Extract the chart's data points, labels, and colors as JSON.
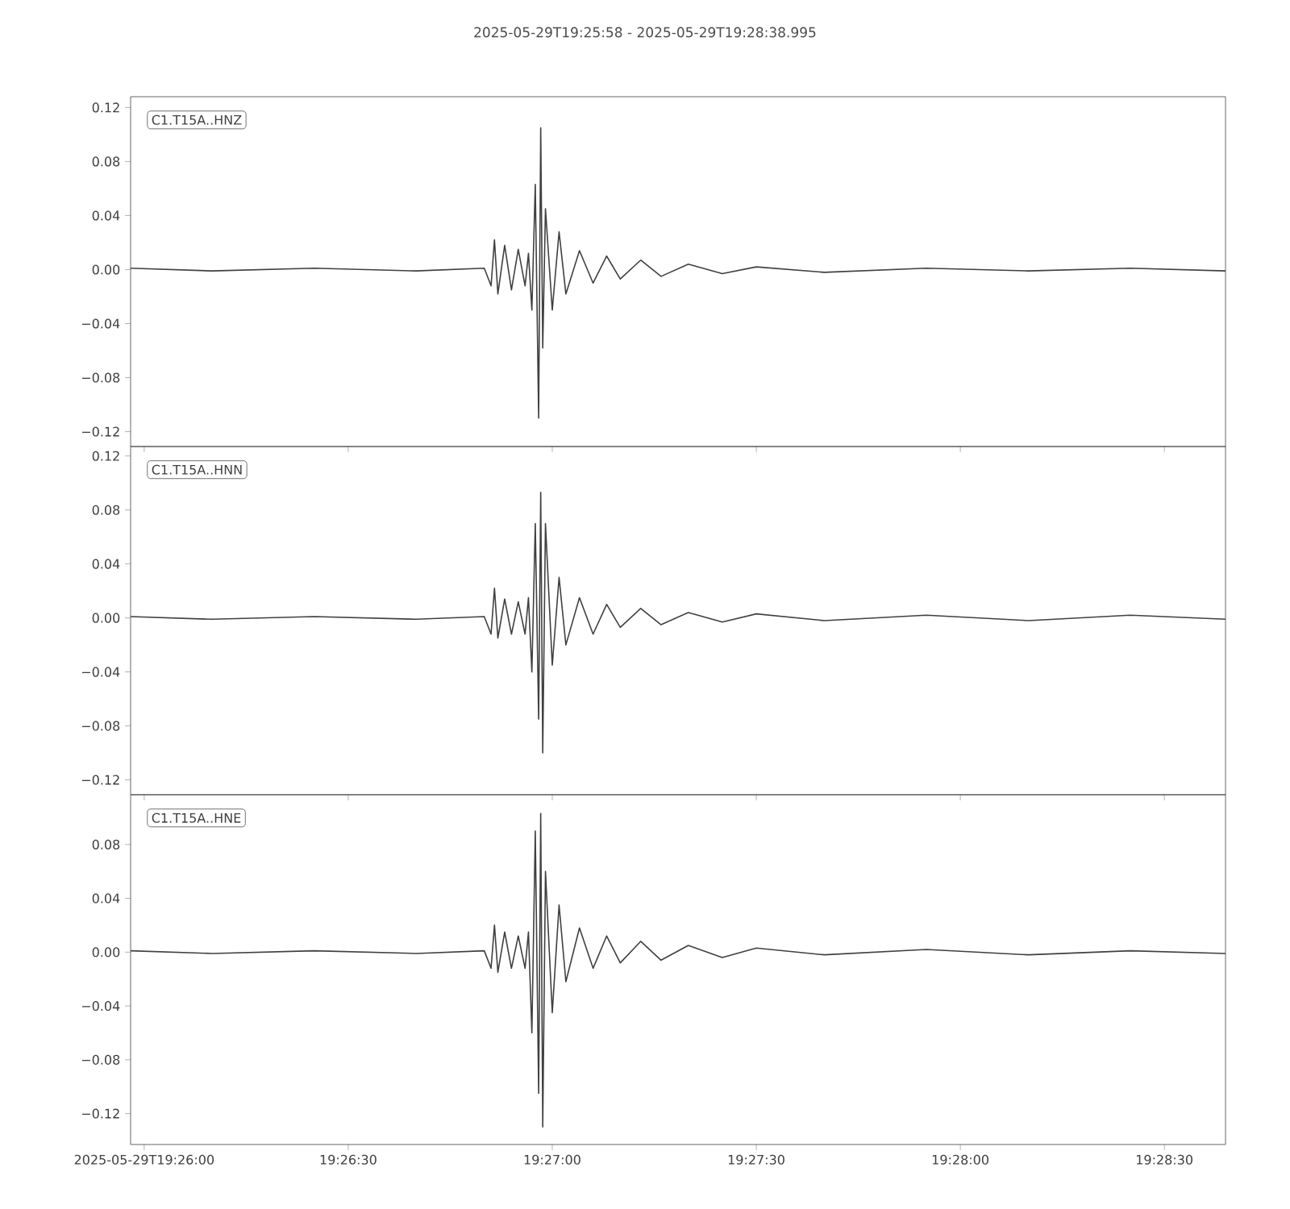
{
  "chart_data": [
    {
      "type": "line",
      "title": "2025-05-29T19:25:58  -  2025-05-29T19:28:38.995",
      "annotations": [
        "C1.T15A..HNZ"
      ],
      "color": "#404040",
      "x": [
        19.432778,
        19.436111,
        19.440278,
        19.444444,
        19.447222,
        19.4475,
        19.447639,
        19.447778,
        19.448056,
        19.448333,
        19.448611,
        19.448889,
        19.449028,
        19.449167,
        19.449306,
        19.449444,
        19.449528,
        19.449611,
        19.449722,
        19.45,
        19.450278,
        19.450556,
        19.451111,
        19.451667,
        19.452222,
        19.452778,
        19.453611,
        19.454444,
        19.455556,
        19.456944,
        19.458333,
        19.461111,
        19.465278,
        19.469444,
        19.473611,
        19.477498
      ],
      "values": [
        0.001,
        -0.001,
        0.001,
        -0.001,
        0.001,
        -0.012,
        0.022,
        -0.018,
        0.018,
        -0.015,
        0.015,
        -0.012,
        0.012,
        -0.03,
        0.063,
        -0.11,
        0.105,
        -0.058,
        0.045,
        -0.03,
        0.028,
        -0.018,
        0.014,
        -0.01,
        0.01,
        -0.007,
        0.007,
        -0.005,
        0.004,
        -0.003,
        0.002,
        -0.002,
        0.001,
        -0.001,
        0.001,
        -0.001
      ],
      "xlim": [
        19.432778,
        19.477498
      ],
      "ylim": [
        -0.131,
        0.128
      ],
      "xticks": [
        {
          "value": 19.433333,
          "label": null
        },
        {
          "value": 19.441667,
          "label": null
        },
        {
          "value": 19.45,
          "label": null
        },
        {
          "value": 19.458333,
          "label": null
        },
        {
          "value": 19.466667,
          "label": null
        },
        {
          "value": 19.475,
          "label": null
        }
      ],
      "yticks": [
        {
          "value": -0.12,
          "label": "−0.12"
        },
        {
          "value": -0.08,
          "label": "−0.08"
        },
        {
          "value": -0.04,
          "label": "−0.04"
        },
        {
          "value": 0,
          "label": "0.00"
        },
        {
          "value": 0.04,
          "label": "0.04"
        },
        {
          "value": 0.08,
          "label": "0.08"
        },
        {
          "value": 0.12,
          "label": "0.12"
        }
      ],
      "tick_labels": "y"
    },
    {
      "type": "line",
      "annotations": [
        "C1.T15A..HNN"
      ],
      "color": "#404040",
      "x": [
        19.432778,
        19.436111,
        19.440278,
        19.444444,
        19.447222,
        19.4475,
        19.447639,
        19.447778,
        19.448056,
        19.448333,
        19.448611,
        19.448889,
        19.449028,
        19.449167,
        19.449306,
        19.449444,
        19.449528,
        19.449611,
        19.449722,
        19.45,
        19.450278,
        19.450556,
        19.451111,
        19.451667,
        19.452222,
        19.452778,
        19.453611,
        19.454444,
        19.455556,
        19.456944,
        19.458333,
        19.461111,
        19.465278,
        19.469444,
        19.473611,
        19.477498
      ],
      "values": [
        0.001,
        -0.001,
        0.001,
        -0.001,
        0.001,
        -0.012,
        0.022,
        -0.015,
        0.014,
        -0.012,
        0.012,
        -0.012,
        0.015,
        -0.04,
        0.07,
        -0.075,
        0.093,
        -0.1,
        0.07,
        -0.035,
        0.03,
        -0.02,
        0.015,
        -0.012,
        0.01,
        -0.007,
        0.007,
        -0.005,
        0.004,
        -0.003,
        0.003,
        -0.002,
        0.002,
        -0.002,
        0.002,
        -0.001
      ],
      "xlim": [
        19.432778,
        19.477498
      ],
      "ylim": [
        -0.131,
        0.127
      ],
      "xticks": [
        {
          "value": 19.433333,
          "label": null
        },
        {
          "value": 19.441667,
          "label": null
        },
        {
          "value": 19.45,
          "label": null
        },
        {
          "value": 19.458333,
          "label": null
        },
        {
          "value": 19.466667,
          "label": null
        },
        {
          "value": 19.475,
          "label": null
        }
      ],
      "yticks": [
        {
          "value": -0.12,
          "label": "−0.12"
        },
        {
          "value": -0.08,
          "label": "−0.08"
        },
        {
          "value": -0.04,
          "label": "−0.04"
        },
        {
          "value": 0,
          "label": "0.00"
        },
        {
          "value": 0.04,
          "label": "0.04"
        },
        {
          "value": 0.08,
          "label": "0.08"
        },
        {
          "value": 0.12,
          "label": "0.12"
        }
      ],
      "tick_labels": "y"
    },
    {
      "type": "line",
      "annotations": [
        "C1.T15A..HNE"
      ],
      "color": "#404040",
      "x": [
        19.432778,
        19.436111,
        19.440278,
        19.444444,
        19.447222,
        19.4475,
        19.447639,
        19.447778,
        19.448056,
        19.448333,
        19.448611,
        19.448889,
        19.449028,
        19.449167,
        19.449306,
        19.449444,
        19.449528,
        19.449611,
        19.449722,
        19.45,
        19.450278,
        19.450556,
        19.451111,
        19.451667,
        19.452222,
        19.452778,
        19.453611,
        19.454444,
        19.455556,
        19.456944,
        19.458333,
        19.461111,
        19.465278,
        19.469444,
        19.473611,
        19.477498
      ],
      "values": [
        0.001,
        -0.001,
        0.001,
        -0.001,
        0.001,
        -0.012,
        0.02,
        -0.015,
        0.015,
        -0.012,
        0.012,
        -0.012,
        0.015,
        -0.06,
        0.09,
        -0.105,
        0.103,
        -0.13,
        0.06,
        -0.045,
        0.035,
        -0.022,
        0.018,
        -0.012,
        0.012,
        -0.008,
        0.008,
        -0.006,
        0.005,
        -0.004,
        0.003,
        -0.002,
        0.002,
        -0.002,
        0.001,
        -0.001
      ],
      "xlim": [
        19.432778,
        19.477498
      ],
      "ylim": [
        -0.143,
        0.117
      ],
      "xticks": [
        {
          "value": 19.433333,
          "label": "2025-05-29T19:26:00"
        },
        {
          "value": 19.441667,
          "label": "19:26:30"
        },
        {
          "value": 19.45,
          "label": "19:27:00"
        },
        {
          "value": 19.458333,
          "label": "19:27:30"
        },
        {
          "value": 19.466667,
          "label": "19:28:00"
        },
        {
          "value": 19.475,
          "label": "19:28:30"
        }
      ],
      "yticks": [
        {
          "value": -0.12,
          "label": "−0.12"
        },
        {
          "value": -0.08,
          "label": "−0.08"
        },
        {
          "value": -0.04,
          "label": "−0.04"
        },
        {
          "value": 0,
          "label": "0.00"
        },
        {
          "value": 0.04,
          "label": "0.04"
        },
        {
          "value": 0.08,
          "label": "0.08"
        }
      ]
    }
  ]
}
